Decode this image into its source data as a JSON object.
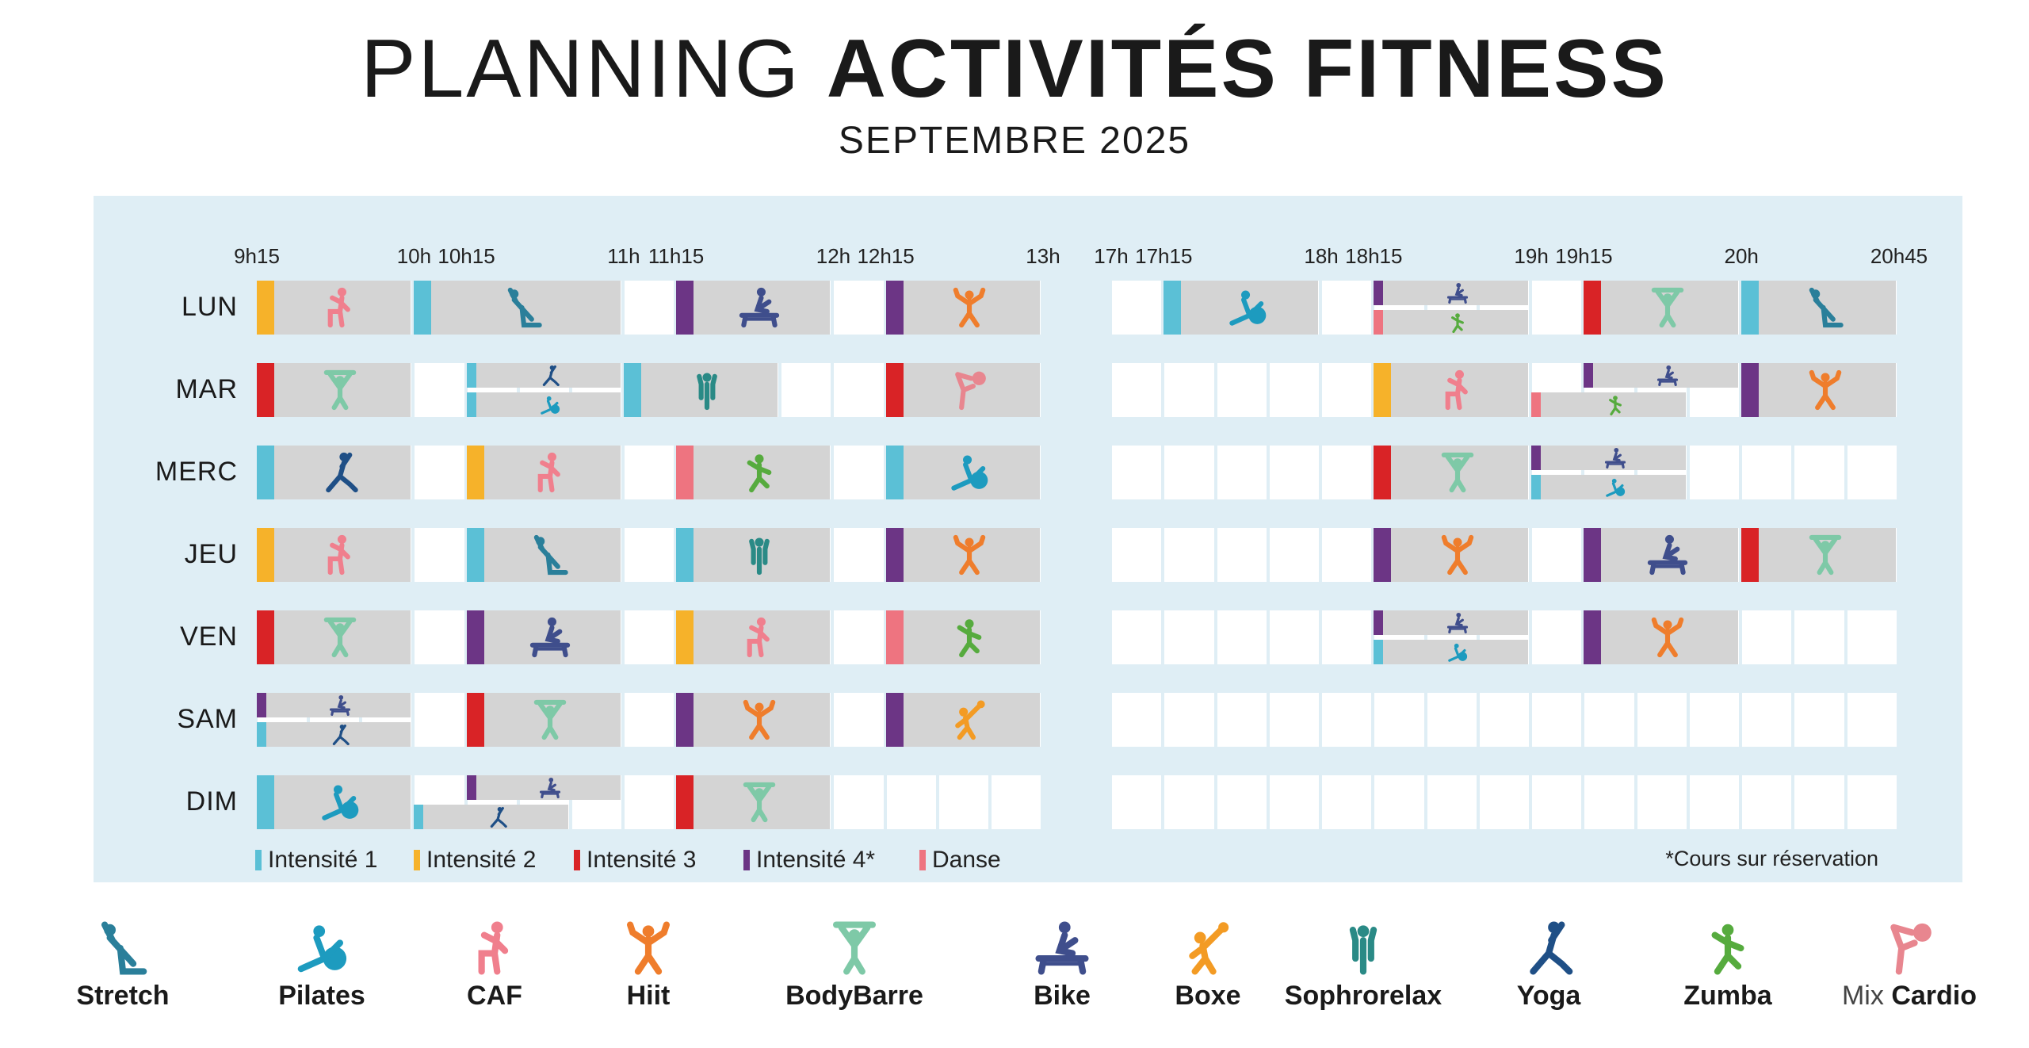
{
  "header": {
    "title_light": "PLANNING",
    "title_bold": "ACTIVITÉS FITNESS",
    "subtitle": "SEPTEMBRE 2025"
  },
  "colors": {
    "intensite_1": "#5bc0d6",
    "intensite_2": "#f6b22a",
    "intensite_3": "#d92326",
    "intensite_4": "#6c3585",
    "danse": "#ee7480",
    "block": "#d4d4d4",
    "panel": "#dfeef5"
  },
  "time_labels": [
    "9h15",
    "10h",
    "10h15",
    "11h",
    "11h15",
    "12h",
    "12h15",
    "13h",
    "17h",
    "17h15",
    "18h",
    "18h15",
    "19h",
    "19h15",
    "20h",
    "20h45"
  ],
  "days": [
    "LUN",
    "MAR",
    "MERC",
    "JEU",
    "VEN",
    "SAM",
    "DIM"
  ],
  "activities": {
    "stretch": {
      "label": "Stretch",
      "color": "#2a7f9a"
    },
    "pilates": {
      "label": "Pilates",
      "color": "#1d9bbf"
    },
    "caf": {
      "label": "CAF",
      "color": "#f07f8d"
    },
    "hiit": {
      "label": "Hiit",
      "color": "#ef7d2c"
    },
    "bodybarre": {
      "label": "BodyBarre",
      "color": "#7ec9a7"
    },
    "bike": {
      "label": "Bike",
      "color": "#3f4e8c"
    },
    "boxe": {
      "label": "Boxe",
      "color": "#f39b24"
    },
    "sophrorelax": {
      "label": "Sophrorelax",
      "color": "#2a8a86"
    },
    "yoga": {
      "label": "Yoga",
      "color": "#1f4f86"
    },
    "zumba": {
      "label": "Zumba",
      "color": "#56ab3e"
    },
    "mixcardio": {
      "label_light": "Mix",
      "label_bold": "Cardio",
      "color": "#e8868f"
    }
  },
  "legend": [
    {
      "label": "Intensité 1",
      "color": "#5bc0d6"
    },
    {
      "label": "Intensité 2",
      "color": "#f6b22a"
    },
    {
      "label": "Intensité 3",
      "color": "#d92326"
    },
    {
      "label": "Intensité 4*",
      "color": "#6c3585"
    },
    {
      "label": "Danse",
      "color": "#ee7480"
    }
  ],
  "note": "*Cours sur réservation",
  "schedule": [
    {
      "day": "LUN",
      "classes": [
        {
          "start": "9h15",
          "end": "10h",
          "activity": "caf",
          "level": "intensite_2"
        },
        {
          "start": "10h",
          "end": "11h",
          "activity": "stretch",
          "level": "intensite_1"
        },
        {
          "start": "11h15",
          "end": "12h",
          "activity": "bike",
          "level": "intensite_4"
        },
        {
          "start": "12h15",
          "end": "13h",
          "activity": "hiit",
          "level": "intensite_4"
        },
        {
          "start": "17h15",
          "end": "18h",
          "activity": "pilates",
          "level": "intensite_1"
        },
        {
          "start": "18h15",
          "end": "19h",
          "activity": "bike",
          "level": "intensite_4",
          "slot": "top"
        },
        {
          "start": "18h15",
          "end": "19h",
          "activity": "zumba",
          "level": "danse",
          "slot": "bottom"
        },
        {
          "start": "19h15",
          "end": "20h",
          "activity": "bodybarre",
          "level": "intensite_3"
        },
        {
          "start": "20h",
          "end": "20h45",
          "activity": "stretch",
          "level": "intensite_1"
        }
      ]
    },
    {
      "day": "MAR",
      "classes": [
        {
          "start": "9h15",
          "end": "10h",
          "activity": "bodybarre",
          "level": "intensite_3"
        },
        {
          "start": "10h15",
          "end": "11h",
          "activity": "yoga",
          "level": "intensite_1",
          "slot": "top"
        },
        {
          "start": "10h15",
          "end": "11h",
          "activity": "pilates",
          "level": "intensite_1",
          "slot": "bottom"
        },
        {
          "start": "11h",
          "end": "11h45",
          "activity": "sophrorelax",
          "level": "intensite_1"
        },
        {
          "start": "12h15",
          "end": "13h",
          "activity": "mixcardio",
          "level": "intensite_3"
        },
        {
          "start": "18h15",
          "end": "19h",
          "activity": "caf",
          "level": "intensite_2"
        },
        {
          "start": "19h15",
          "end": "20h",
          "activity": "bike",
          "level": "intensite_4",
          "slot": "top"
        },
        {
          "start": "19h",
          "end": "19h45",
          "activity": "zumba",
          "level": "danse",
          "slot": "bottom"
        },
        {
          "start": "20h",
          "end": "20h45",
          "activity": "hiit",
          "level": "intensite_4"
        }
      ]
    },
    {
      "day": "MERC",
      "classes": [
        {
          "start": "9h15",
          "end": "10h",
          "activity": "yoga",
          "level": "intensite_1"
        },
        {
          "start": "10h15",
          "end": "11h",
          "activity": "caf",
          "level": "intensite_2"
        },
        {
          "start": "11h15",
          "end": "12h",
          "activity": "zumba",
          "level": "danse"
        },
        {
          "start": "12h15",
          "end": "13h",
          "activity": "pilates",
          "level": "intensite_1"
        },
        {
          "start": "18h15",
          "end": "19h",
          "activity": "bodybarre",
          "level": "intensite_3"
        },
        {
          "start": "19h",
          "end": "19h45",
          "activity": "bike",
          "level": "intensite_4",
          "slot": "top"
        },
        {
          "start": "19h",
          "end": "19h45",
          "activity": "pilates",
          "level": "intensite_1",
          "slot": "bottom"
        }
      ]
    },
    {
      "day": "JEU",
      "classes": [
        {
          "start": "9h15",
          "end": "10h",
          "activity": "caf",
          "level": "intensite_2"
        },
        {
          "start": "10h15",
          "end": "11h",
          "activity": "stretch",
          "level": "intensite_1"
        },
        {
          "start": "11h15",
          "end": "12h",
          "activity": "sophrorelax",
          "level": "intensite_1"
        },
        {
          "start": "12h15",
          "end": "13h",
          "activity": "hiit",
          "level": "intensite_4"
        },
        {
          "start": "18h15",
          "end": "19h",
          "activity": "hiit",
          "level": "intensite_4"
        },
        {
          "start": "19h15",
          "end": "20h",
          "activity": "bike",
          "level": "intensite_4"
        },
        {
          "start": "20h",
          "end": "20h45",
          "activity": "bodybarre",
          "level": "intensite_3"
        }
      ]
    },
    {
      "day": "VEN",
      "classes": [
        {
          "start": "9h15",
          "end": "10h",
          "activity": "bodybarre",
          "level": "intensite_3"
        },
        {
          "start": "10h15",
          "end": "11h",
          "activity": "bike",
          "level": "intensite_4"
        },
        {
          "start": "11h15",
          "end": "12h",
          "activity": "caf",
          "level": "intensite_2"
        },
        {
          "start": "12h15",
          "end": "13h",
          "activity": "zumba",
          "level": "danse"
        },
        {
          "start": "18h15",
          "end": "19h",
          "activity": "bike",
          "level": "intensite_4",
          "slot": "top"
        },
        {
          "start": "18h15",
          "end": "19h",
          "activity": "pilates",
          "level": "intensite_1",
          "slot": "bottom"
        },
        {
          "start": "19h15",
          "end": "20h",
          "activity": "hiit",
          "level": "intensite_4"
        }
      ]
    },
    {
      "day": "SAM",
      "classes": [
        {
          "start": "9h15",
          "end": "10h",
          "activity": "bike",
          "level": "intensite_4",
          "slot": "top"
        },
        {
          "start": "9h15",
          "end": "10h",
          "activity": "yoga",
          "level": "intensite_1",
          "slot": "bottom"
        },
        {
          "start": "10h15",
          "end": "11h",
          "activity": "bodybarre",
          "level": "intensite_3"
        },
        {
          "start": "11h15",
          "end": "12h",
          "activity": "hiit",
          "level": "intensite_4"
        },
        {
          "start": "12h15",
          "end": "13h",
          "activity": "boxe",
          "level": "intensite_4"
        }
      ]
    },
    {
      "day": "DIM",
      "classes": [
        {
          "start": "9h15",
          "end": "10h",
          "activity": "pilates",
          "level": "intensite_1"
        },
        {
          "start": "10h15",
          "end": "11h",
          "activity": "bike",
          "level": "intensite_4",
          "slot": "top"
        },
        {
          "start": "10h",
          "end": "10h45",
          "activity": "yoga",
          "level": "intensite_1",
          "slot": "bottom"
        },
        {
          "start": "11h15",
          "end": "12h",
          "activity": "bodybarre",
          "level": "intensite_3"
        }
      ]
    }
  ]
}
